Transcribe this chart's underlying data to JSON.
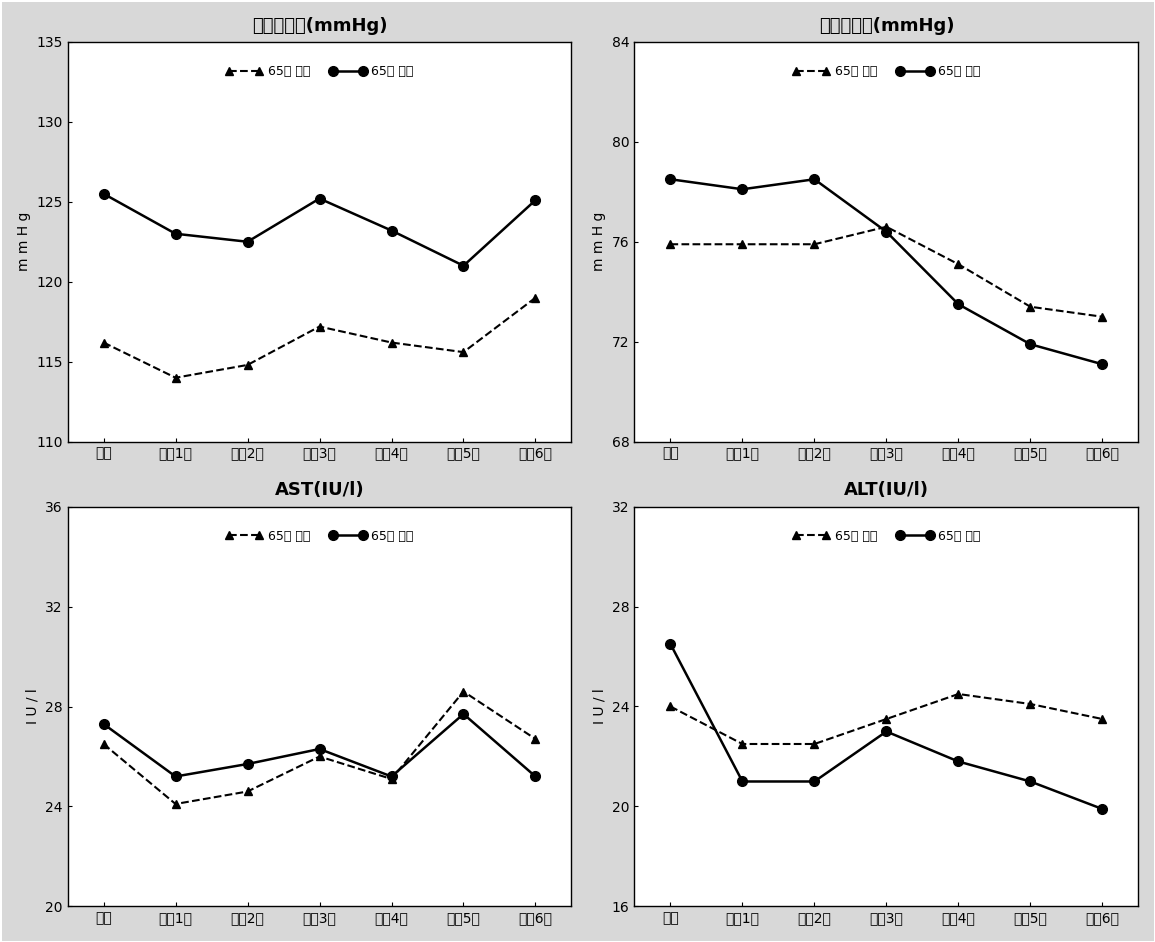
{
  "x_labels": [
    "기초",
    "추적1기",
    "추적2기",
    "추적3기",
    "추적4기",
    "추적5기",
    "추적6기"
  ],
  "panels": [
    {
      "title": "수축기혁압(mmHg)",
      "ylabel": "mmHg",
      "ylim": [
        110,
        135
      ],
      "yticks": [
        110,
        115,
        120,
        125,
        130,
        135
      ],
      "series_under65": [
        116.2,
        114.0,
        114.8,
        117.2,
        116.2,
        115.6,
        119.0
      ],
      "series_over65": [
        125.5,
        123.0,
        122.5,
        125.2,
        123.2,
        121.0,
        125.1
      ]
    },
    {
      "title": "이완기혁압(mmHg)",
      "ylabel": "mmHg",
      "ylim": [
        68,
        84
      ],
      "yticks": [
        68,
        72,
        76,
        80,
        84
      ],
      "series_under65": [
        75.9,
        75.9,
        75.9,
        76.6,
        75.1,
        73.4,
        73.0
      ],
      "series_over65": [
        78.5,
        78.1,
        78.5,
        76.4,
        73.5,
        71.9,
        71.1
      ]
    },
    {
      "title": "AST(IU/l)",
      "ylabel": "IU/l",
      "ylim": [
        20,
        36
      ],
      "yticks": [
        20,
        24,
        28,
        32,
        36
      ],
      "series_under65": [
        26.5,
        24.1,
        24.6,
        26.0,
        25.1,
        28.6,
        26.7
      ],
      "series_over65": [
        27.3,
        25.2,
        25.7,
        26.3,
        25.2,
        27.7,
        25.2
      ]
    },
    {
      "title": "ALT(IU/l)",
      "ylabel": "IU/l",
      "ylim": [
        16,
        32
      ],
      "yticks": [
        16,
        20,
        24,
        28,
        32
      ],
      "series_under65": [
        24.0,
        22.5,
        22.5,
        23.5,
        24.5,
        24.1,
        23.5
      ],
      "series_over65": [
        26.5,
        21.0,
        21.0,
        23.0,
        21.8,
        21.0,
        19.9
      ]
    }
  ],
  "legend_under65": "65세 미만",
  "legend_over65": "65세 이상",
  "background_color": "#d8d8d8",
  "plot_bg_color": "#ffffff",
  "outer_bg_color": "#c8c8c8"
}
